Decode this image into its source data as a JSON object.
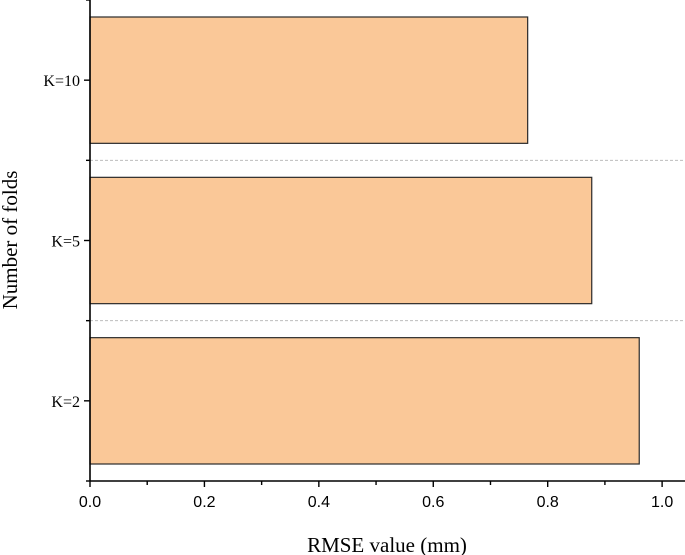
{
  "chart_data": {
    "type": "bar",
    "orientation": "horizontal",
    "categories": [
      "K=2",
      "K=5",
      "K=10"
    ],
    "values": [
      0.96,
      0.877,
      0.765
    ],
    "title": "",
    "xlabel": "RMSE value (mm)",
    "ylabel": "Number of folds",
    "xlim": [
      0,
      1.04
    ],
    "xticks": [
      "0.0",
      "0.2",
      "0.4",
      "0.6",
      "0.8",
      "1.0"
    ],
    "bar_color": "#FAC898",
    "bar_edge_color": "#2a2a2a",
    "separator_lines": "dashed-between-categories",
    "grid": false,
    "legend": "none"
  }
}
